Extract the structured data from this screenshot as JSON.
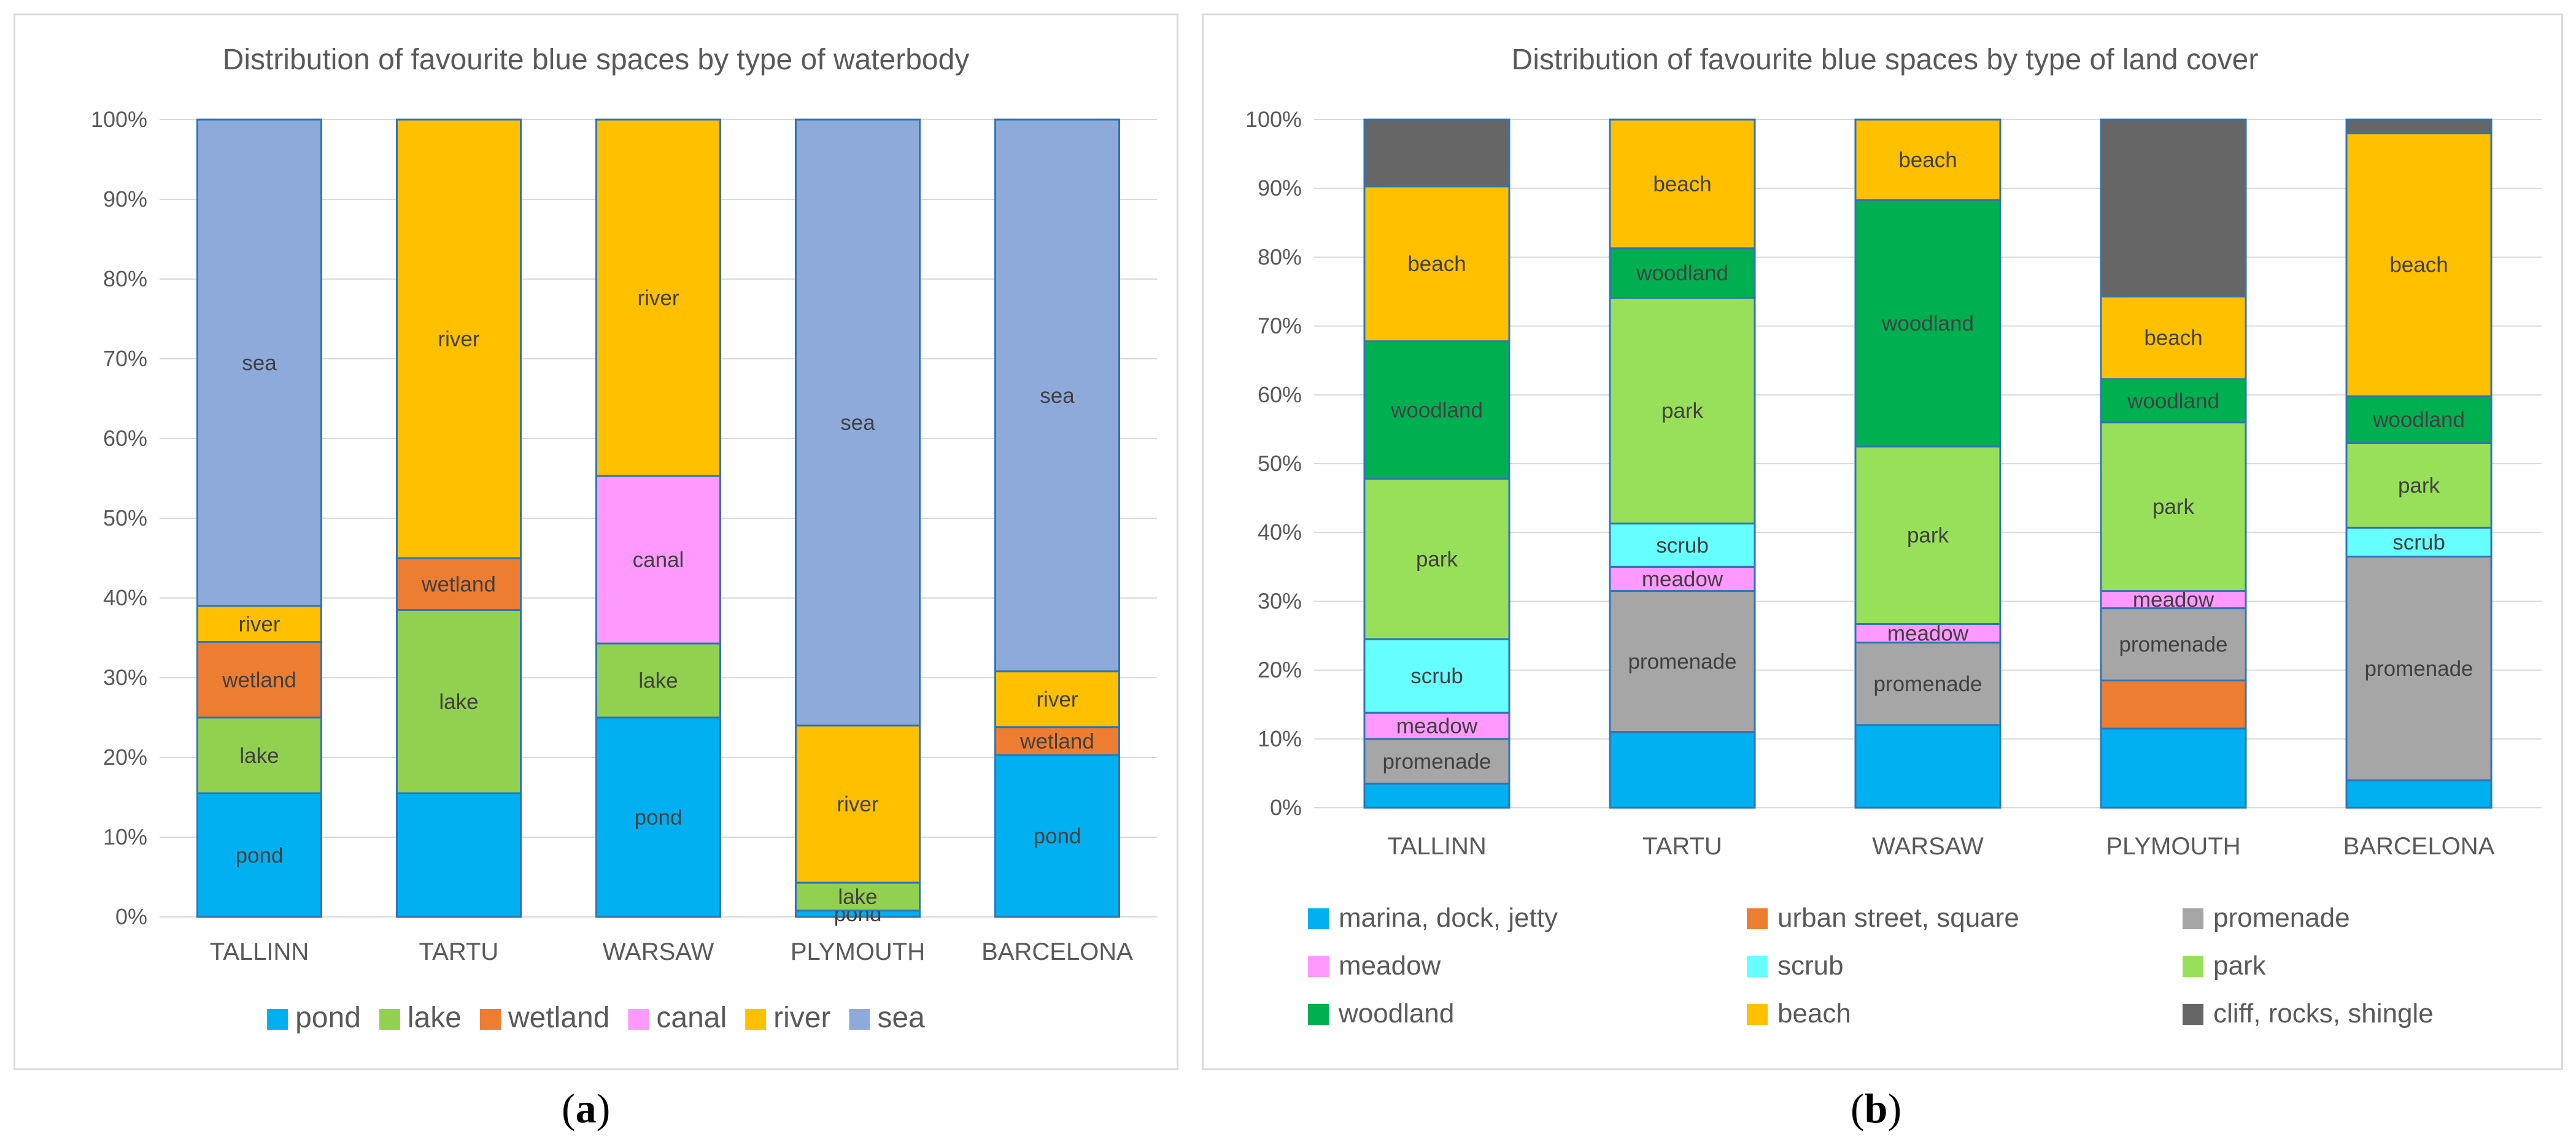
{
  "chart_data": [
    {
      "type": "bar",
      "stacked": true,
      "title": "Distribution of favourite blue spaces by type of waterbody",
      "categories": [
        "TALLINN",
        "TARTU",
        "WARSAW",
        "PLYMOUTH",
        "BARCELONA"
      ],
      "ylim": [
        0,
        100
      ],
      "yticks": [
        "0%",
        "10%",
        "20%",
        "30%",
        "40%",
        "50%",
        "60%",
        "70%",
        "80%",
        "90%",
        "100%"
      ],
      "legend_position": "bottom",
      "series": [
        {
          "name": "pond",
          "color": "#00b0f0",
          "values": [
            15.5,
            15.5,
            25,
            0.8,
            20.3
          ],
          "labels": [
            "pond",
            "",
            "pond",
            "pond",
            "pond"
          ]
        },
        {
          "name": "lake",
          "color": "#92d050",
          "values": [
            9.5,
            23,
            9.3,
            3.5,
            0
          ],
          "labels": [
            "lake",
            "lake",
            "lake",
            "lake",
            ""
          ]
        },
        {
          "name": "wetland",
          "color": "#ed7d31",
          "values": [
            9.5,
            6.5,
            0,
            0,
            3.5
          ],
          "labels": [
            "wetland",
            "wetland",
            "",
            "",
            "wetland"
          ]
        },
        {
          "name": "canal",
          "color": "#ff99ff",
          "values": [
            0,
            0,
            21,
            0,
            0
          ],
          "labels": [
            "",
            "",
            "canal",
            "",
            ""
          ]
        },
        {
          "name": "river",
          "color": "#ffc000",
          "values": [
            4.5,
            55,
            44.7,
            19.7,
            7
          ],
          "labels": [
            "river",
            "river",
            "river",
            "river",
            "river"
          ]
        },
        {
          "name": "sea",
          "color": "#8eaadb",
          "values": [
            61,
            0,
            0,
            76,
            69.2
          ],
          "labels": [
            "sea",
            "",
            "",
            "sea",
            "sea"
          ]
        }
      ],
      "caption_letter": "a"
    },
    {
      "type": "bar",
      "stacked": true,
      "title": "Distribution of favourite blue spaces by type of land cover",
      "categories": [
        "TALLINN",
        "TARTU",
        "WARSAW",
        "PLYMOUTH",
        "BARCELONA"
      ],
      "ylim": [
        0,
        100
      ],
      "yticks": [
        "0%",
        "10%",
        "20%",
        "30%",
        "40%",
        "50%",
        "60%",
        "70%",
        "80%",
        "90%",
        "100%"
      ],
      "legend_position": "bottom",
      "series": [
        {
          "name": "marina, dock, jetty",
          "color": "#00b0f0",
          "values": [
            3.5,
            11,
            12,
            11.5,
            4
          ],
          "labels": [
            "",
            "",
            "",
            "",
            ""
          ]
        },
        {
          "name": "urban street, square",
          "color": "#ed7d31",
          "values": [
            0,
            0,
            0,
            7,
            0
          ],
          "labels": [
            "",
            "",
            "",
            "",
            ""
          ]
        },
        {
          "name": "promenade",
          "color": "#a6a6a6",
          "values": [
            6.5,
            20.5,
            12,
            10.5,
            32.5
          ],
          "labels": [
            "promenade",
            "promenade",
            "promenade",
            "promenade",
            "promenade"
          ]
        },
        {
          "name": "meadow",
          "color": "#ff99ff",
          "values": [
            3.8,
            3.5,
            2.7,
            2.5,
            0
          ],
          "labels": [
            "meadow",
            "meadow",
            "meadow",
            "meadow",
            ""
          ]
        },
        {
          "name": "scrub",
          "color": "#66ffff",
          "values": [
            10.7,
            6.3,
            0,
            0,
            4.2
          ],
          "labels": [
            "scrub",
            "scrub",
            "",
            "",
            "scrub"
          ]
        },
        {
          "name": "park",
          "color": "#99e05a",
          "values": [
            23.3,
            32.8,
            25.8,
            24.5,
            12.3
          ],
          "labels": [
            "park",
            "park",
            "park",
            "park",
            "park"
          ]
        },
        {
          "name": "woodland",
          "color": "#00b050",
          "values": [
            20,
            7.2,
            35.8,
            6.3,
            6.8
          ],
          "labels": [
            "woodland",
            "woodland",
            "woodland",
            "woodland",
            "woodland"
          ]
        },
        {
          "name": "beach",
          "color": "#ffc000",
          "values": [
            22.5,
            18.7,
            11.7,
            12,
            38.2
          ],
          "labels": [
            "beach",
            "beach",
            "beach",
            "beach",
            "beach"
          ]
        },
        {
          "name": "cliff, rocks, shingle",
          "color": "#666666",
          "values": [
            9.7,
            0,
            0,
            25.7,
            2
          ],
          "labels": [
            "",
            "",
            "",
            "",
            ""
          ]
        }
      ],
      "caption_letter": "b"
    }
  ]
}
